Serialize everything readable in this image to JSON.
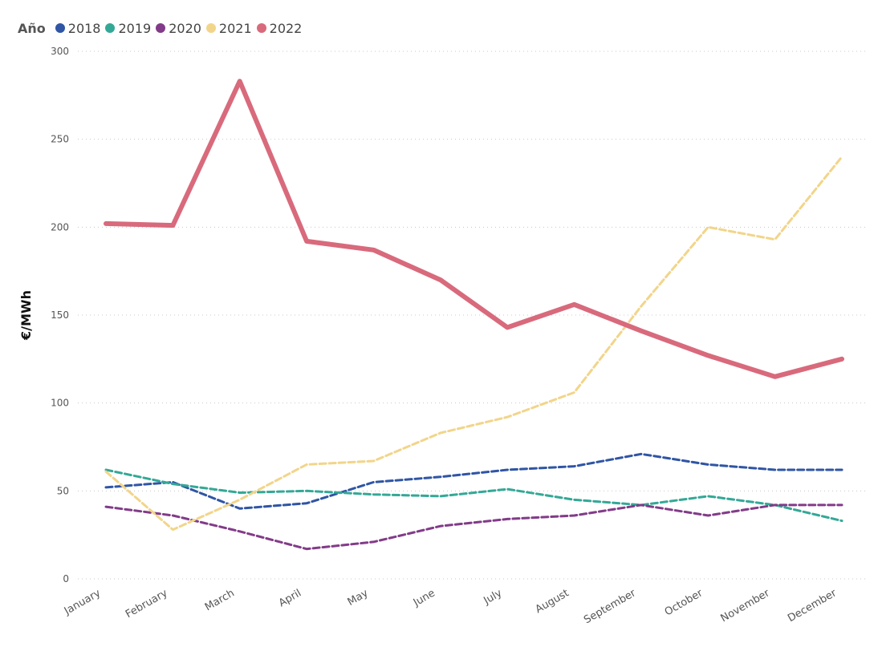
{
  "legend": {
    "title": "Año"
  },
  "chart_data": {
    "type": "line",
    "ylabel": "€/MWh",
    "ylim": [
      0,
      300
    ],
    "yticks": [
      0,
      50,
      100,
      150,
      200,
      250,
      300
    ],
    "grid": true,
    "legend_position": "top-left",
    "categories": [
      "January",
      "February",
      "March",
      "April",
      "May",
      "June",
      "July",
      "August",
      "September",
      "October",
      "November",
      "December"
    ],
    "series": [
      {
        "name": "2018",
        "color": "#2f55a4",
        "line_style": "dashed",
        "values": [
          52,
          55,
          40,
          43,
          55,
          58,
          62,
          64,
          71,
          65,
          62,
          62
        ]
      },
      {
        "name": "2019",
        "color": "#34a896",
        "line_style": "dashed",
        "values": [
          62,
          54,
          49,
          50,
          48,
          47,
          51,
          45,
          42,
          47,
          42,
          33
        ]
      },
      {
        "name": "2020",
        "color": "#823b88",
        "line_style": "dashed",
        "values": [
          41,
          36,
          27,
          17,
          21,
          30,
          34,
          36,
          42,
          36,
          42,
          42
        ]
      },
      {
        "name": "2021",
        "color": "#f2d58a",
        "line_style": "dashed",
        "values": [
          61,
          28,
          45,
          65,
          67,
          83,
          92,
          106,
          155,
          200,
          193,
          240
        ]
      },
      {
        "name": "2022",
        "color": "#d86a7c",
        "line_style": "solid",
        "values": [
          202,
          201,
          283,
          192,
          187,
          170,
          143,
          156,
          141,
          127,
          115,
          125
        ]
      }
    ]
  }
}
